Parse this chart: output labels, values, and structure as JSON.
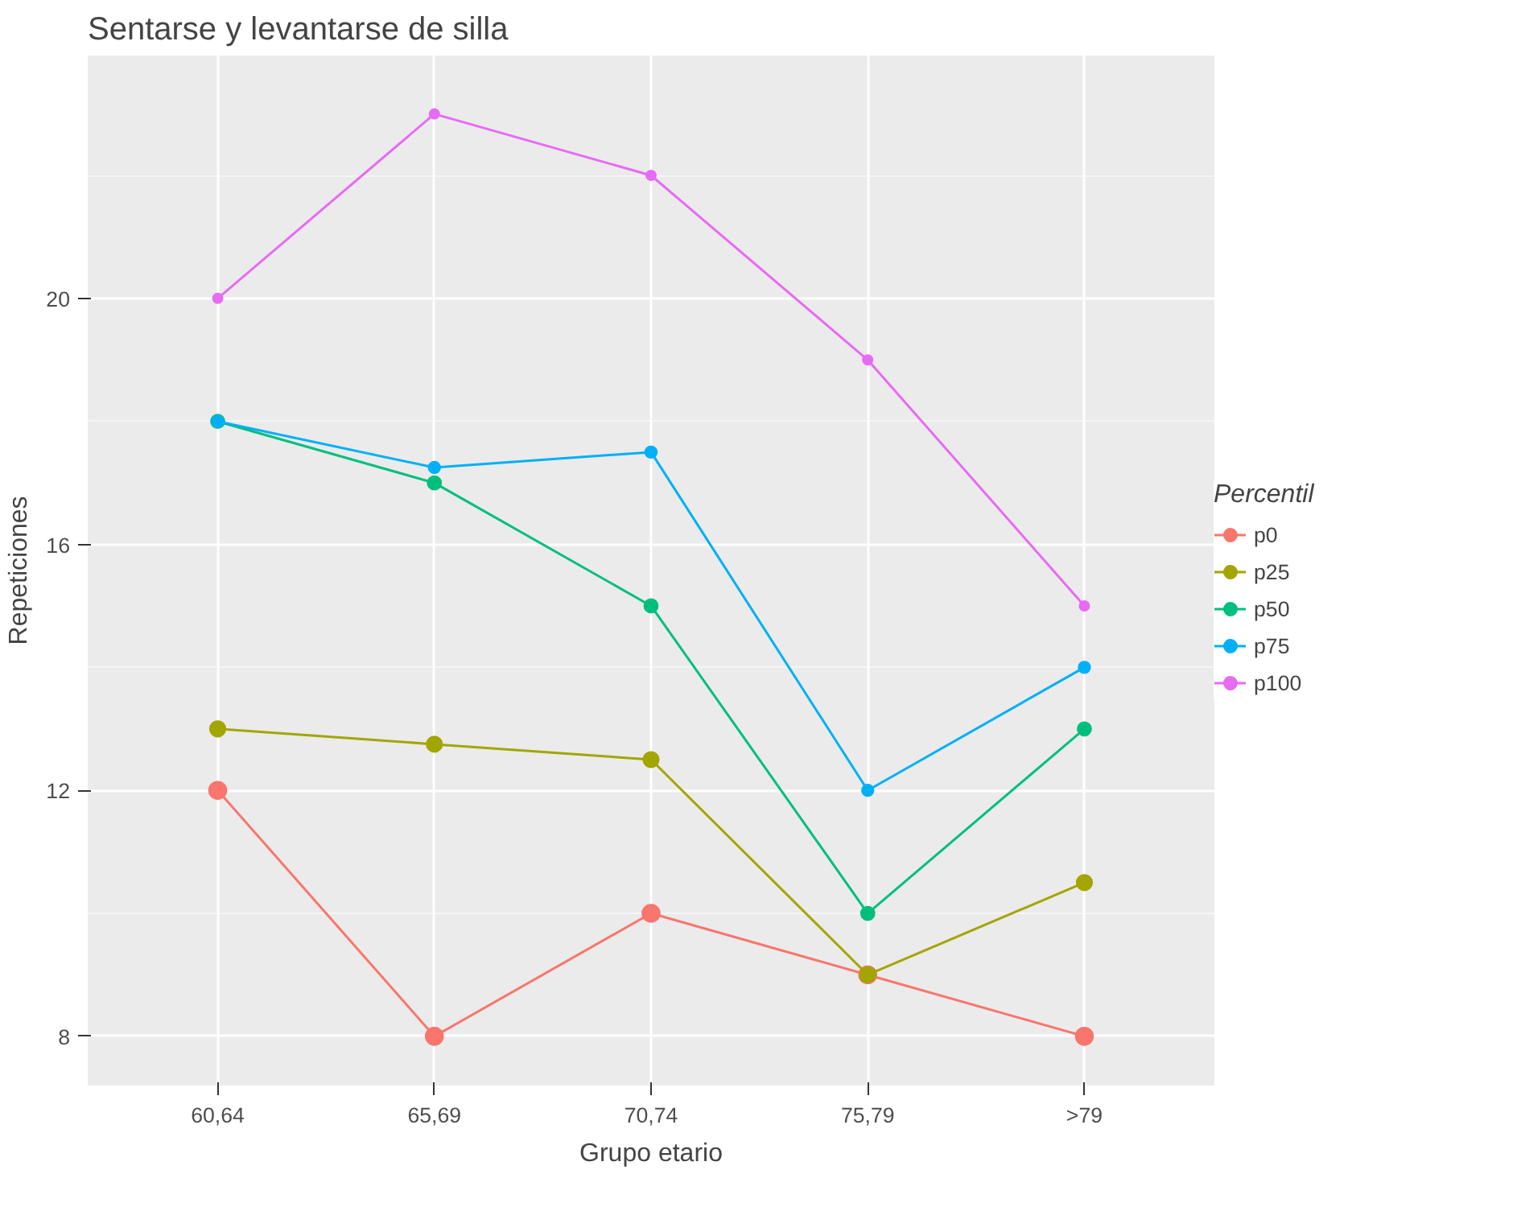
{
  "chart_data": {
    "type": "line",
    "title": "Sentarse y levantarse de silla",
    "xlabel": "Grupo etario",
    "ylabel": "Repeticiones",
    "legend_title": "Percentil",
    "categories": [
      "60,64",
      "65,69",
      "70,74",
      "75,79",
      ">79"
    ],
    "series": [
      {
        "name": "p0",
        "color": "#f8766d",
        "values": [
          12,
          8,
          10,
          9,
          8
        ]
      },
      {
        "name": "p25",
        "color": "#a3a500",
        "values": [
          13,
          12.75,
          12.5,
          9,
          10.5
        ]
      },
      {
        "name": "p50",
        "color": "#00bf7d",
        "values": [
          18,
          17,
          15,
          10,
          13
        ]
      },
      {
        "name": "p75",
        "color": "#00b0f6",
        "values": [
          18,
          17.25,
          17.5,
          12,
          14
        ]
      },
      {
        "name": "p100",
        "color": "#e76bf3",
        "values": [
          20,
          23,
          22,
          19,
          15
        ]
      }
    ],
    "ylim": [
      7.2,
      23.95
    ],
    "yticks": [
      8,
      12,
      16,
      20
    ],
    "grid": true,
    "legend": "right",
    "marker": "circle",
    "line_style": "solid"
  }
}
